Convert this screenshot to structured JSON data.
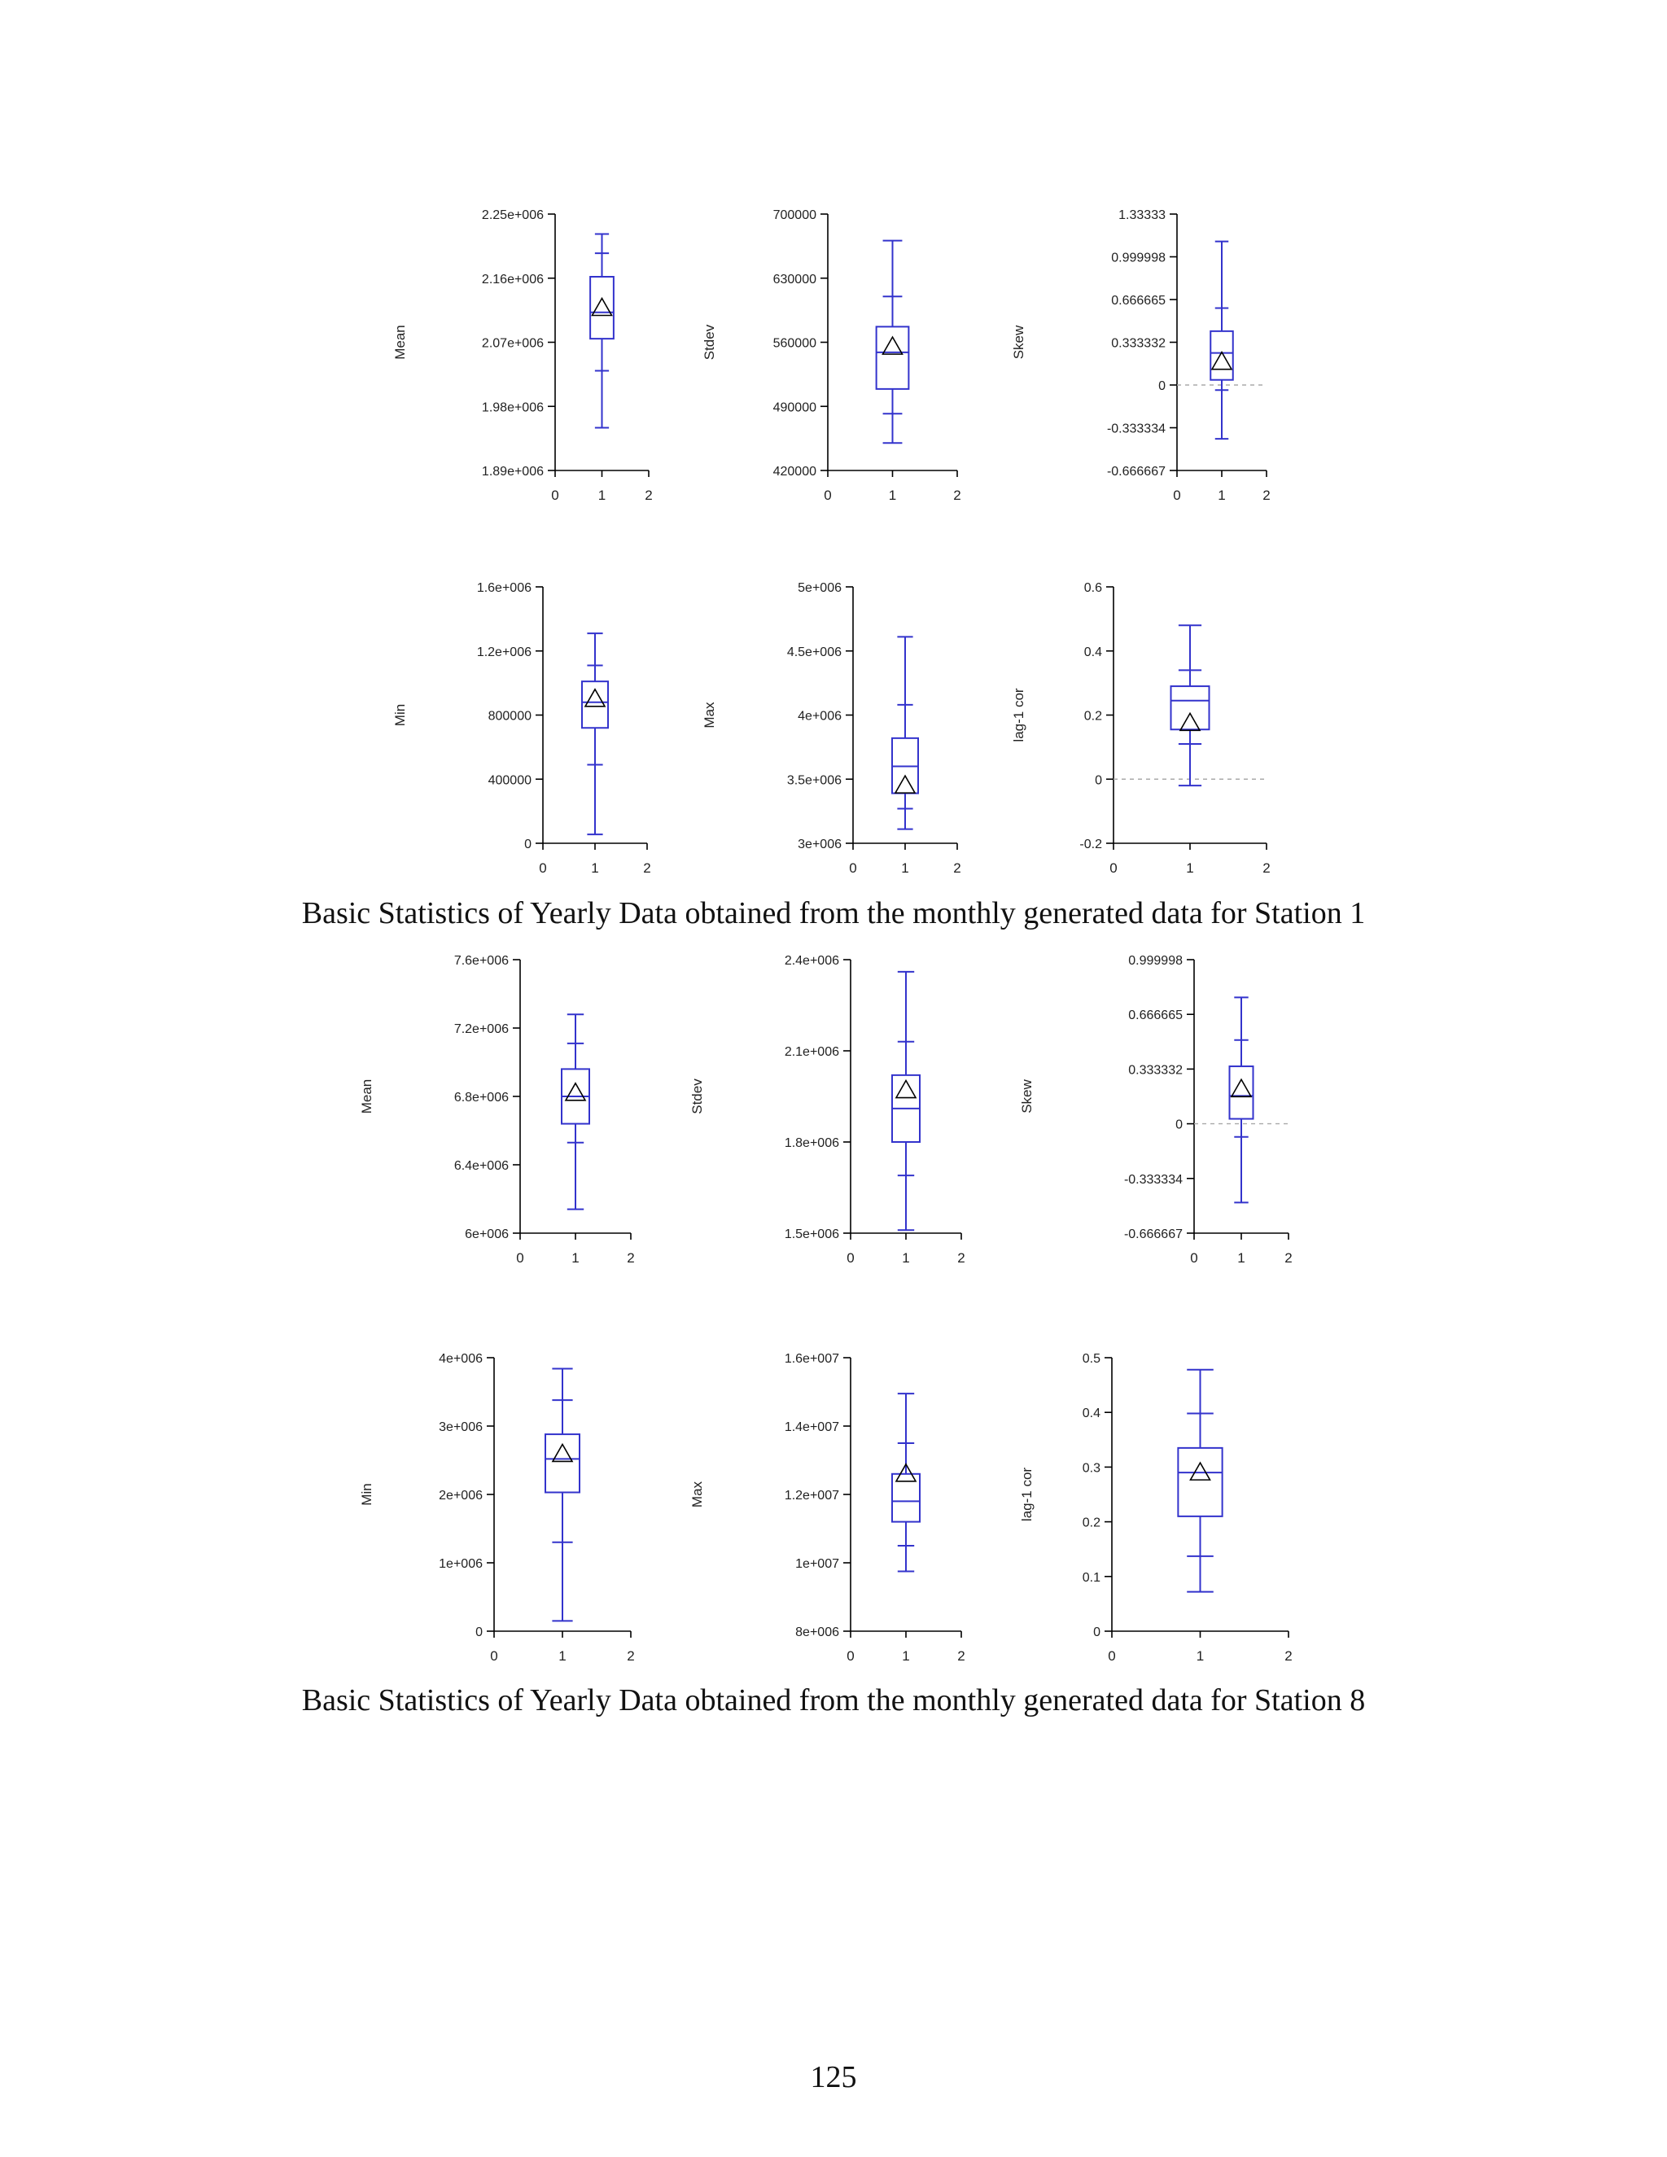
{
  "page": {
    "caption1": "Basic Statistics of Yearly Data obtained from the monthly generated data for Station 1",
    "caption2": "Basic Statistics of Yearly Data obtained from the monthly generated data for Station 8",
    "page_number": "125"
  },
  "colors": {
    "box": "#3333cc",
    "mean_marker": "#000000",
    "axis": "#000000",
    "zero_line": "#aaaaaa"
  },
  "chart_data": [
    {
      "type": "box",
      "station": 1,
      "ylabel": "Mean",
      "xticks": [
        "0",
        "1",
        "2"
      ],
      "ylim": [
        1890000,
        2250000
      ],
      "yticks": [
        {
          "v": 1890000,
          "l": "1.89e+006"
        },
        {
          "v": 1980000,
          "l": "1.98e+006"
        },
        {
          "v": 2070000,
          "l": "2.07e+006"
        },
        {
          "v": 2160000,
          "l": "2.16e+006"
        },
        {
          "v": 2250000,
          "l": "2.25e+006"
        }
      ],
      "stats": {
        "whisker_low": 1950000,
        "p5": 2030000,
        "q1": 2075000,
        "median": 2112000,
        "q3": 2162000,
        "p95": 2195000,
        "whisker_high": 2222000,
        "mean": 2118000
      },
      "zero_line": false
    },
    {
      "type": "box",
      "station": 1,
      "ylabel": "Stdev",
      "xticks": [
        "0",
        "1",
        "2"
      ],
      "ylim": [
        420000,
        700000
      ],
      "yticks": [
        {
          "v": 420000,
          "l": "420000"
        },
        {
          "v": 490000,
          "l": "490000"
        },
        {
          "v": 560000,
          "l": "560000"
        },
        {
          "v": 630000,
          "l": "630000"
        },
        {
          "v": 700000,
          "l": "700000"
        }
      ],
      "stats": {
        "whisker_low": 450000,
        "p5": 482000,
        "q1": 509000,
        "median": 549000,
        "q3": 577000,
        "p95": 610000,
        "whisker_high": 671000,
        "mean": 555000
      },
      "zero_line": false
    },
    {
      "type": "box",
      "station": 1,
      "ylabel": "Skew",
      "xticks": [
        "0",
        "1",
        "2"
      ],
      "ylim": [
        -0.666667,
        1.33333
      ],
      "yticks": [
        {
          "v": -0.666667,
          "l": "-0.666667"
        },
        {
          "v": -0.333334,
          "l": "-0.333334"
        },
        {
          "v": 0,
          "l": "0"
        },
        {
          "v": 0.333332,
          "l": "0.333332"
        },
        {
          "v": 0.666665,
          "l": "0.666665"
        },
        {
          "v": 0.999998,
          "l": "0.999998"
        },
        {
          "v": 1.33333,
          "l": "1.33333"
        }
      ],
      "stats": {
        "whisker_low": -0.42,
        "p5": -0.04,
        "q1": 0.04,
        "median": 0.25,
        "q3": 0.42,
        "p95": 0.6,
        "whisker_high": 1.12,
        "mean": 0.18
      },
      "zero_line": true
    },
    {
      "type": "box",
      "station": 1,
      "ylabel": "Min",
      "xticks": [
        "0",
        "1",
        "2"
      ],
      "ylim": [
        0,
        1600000
      ],
      "yticks": [
        {
          "v": 0,
          "l": "0"
        },
        {
          "v": 400000,
          "l": "400000"
        },
        {
          "v": 800000,
          "l": "800000"
        },
        {
          "v": 1200000,
          "l": "1.2e+006"
        },
        {
          "v": 1600000,
          "l": "1.6e+006"
        }
      ],
      "stats": {
        "whisker_low": 55000,
        "p5": 490000,
        "q1": 720000,
        "median": 880000,
        "q3": 1010000,
        "p95": 1110000,
        "whisker_high": 1310000,
        "mean": 900000
      },
      "zero_line": false
    },
    {
      "type": "box",
      "station": 1,
      "ylabel": "Max",
      "xticks": [
        "0",
        "1",
        "2"
      ],
      "ylim": [
        3000000,
        5000000
      ],
      "yticks": [
        {
          "v": 3000000,
          "l": "3e+006"
        },
        {
          "v": 3500000,
          "l": "3.5e+006"
        },
        {
          "v": 4000000,
          "l": "4e+006"
        },
        {
          "v": 4500000,
          "l": "4.5e+006"
        },
        {
          "v": 5000000,
          "l": "5e+006"
        }
      ],
      "stats": {
        "whisker_low": 3110000,
        "p5": 3270000,
        "q1": 3390000,
        "median": 3600000,
        "q3": 3820000,
        "p95": 4080000,
        "whisker_high": 4610000,
        "mean": 3450000
      },
      "zero_line": false
    },
    {
      "type": "box",
      "station": 1,
      "ylabel": "lag-1 cor",
      "xticks": [
        "0",
        "1",
        "2"
      ],
      "ylim": [
        -0.2,
        0.6
      ],
      "yticks": [
        {
          "v": -0.2,
          "l": "-0.2"
        },
        {
          "v": 0,
          "l": "0"
        },
        {
          "v": 0.2,
          "l": "0.2"
        },
        {
          "v": 0.4,
          "l": "0.4"
        },
        {
          "v": 0.6,
          "l": "0.6"
        }
      ],
      "stats": {
        "whisker_low": -0.02,
        "p5": 0.11,
        "q1": 0.155,
        "median": 0.245,
        "q3": 0.29,
        "p95": 0.34,
        "whisker_high": 0.48,
        "mean": 0.175
      },
      "zero_line": true
    },
    {
      "type": "box",
      "station": 8,
      "ylabel": "Mean",
      "xticks": [
        "0",
        "1",
        "2"
      ],
      "ylim": [
        6000000,
        7600000
      ],
      "yticks": [
        {
          "v": 6000000,
          "l": "6e+006"
        },
        {
          "v": 6400000,
          "l": "6.4e+006"
        },
        {
          "v": 6800000,
          "l": "6.8e+006"
        },
        {
          "v": 7200000,
          "l": "7.2e+006"
        },
        {
          "v": 7600000,
          "l": "7.6e+006"
        }
      ],
      "stats": {
        "whisker_low": 6140000,
        "p5": 6530000,
        "q1": 6640000,
        "median": 6800000,
        "q3": 6960000,
        "p95": 7110000,
        "whisker_high": 7280000,
        "mean": 6820000
      },
      "zero_line": false
    },
    {
      "type": "box",
      "station": 8,
      "ylabel": "Stdev",
      "xticks": [
        "0",
        "1",
        "2"
      ],
      "ylim": [
        1500000,
        2400000
      ],
      "yticks": [
        {
          "v": 1500000,
          "l": "1.5e+006"
        },
        {
          "v": 1800000,
          "l": "1.8e+006"
        },
        {
          "v": 2100000,
          "l": "2.1e+006"
        },
        {
          "v": 2400000,
          "l": "2.4e+006"
        }
      ],
      "stats": {
        "whisker_low": 1510000,
        "p5": 1690000,
        "q1": 1800000,
        "median": 1910000,
        "q3": 2020000,
        "p95": 2130000,
        "whisker_high": 2360000,
        "mean": 1970000
      },
      "zero_line": false
    },
    {
      "type": "box",
      "station": 8,
      "ylabel": "Skew",
      "xticks": [
        "0",
        "1",
        "2"
      ],
      "ylim": [
        -0.666667,
        0.999998
      ],
      "yticks": [
        {
          "v": -0.666667,
          "l": "-0.666667"
        },
        {
          "v": -0.333334,
          "l": "-0.333334"
        },
        {
          "v": 0,
          "l": "0"
        },
        {
          "v": 0.333332,
          "l": "0.333332"
        },
        {
          "v": 0.666665,
          "l": "0.666665"
        },
        {
          "v": 0.999998,
          "l": "0.999998"
        }
      ],
      "stats": {
        "whisker_low": -0.48,
        "p5": -0.08,
        "q1": 0.03,
        "median": 0.17,
        "q3": 0.35,
        "p95": 0.51,
        "whisker_high": 0.77,
        "mean": 0.21
      },
      "zero_line": true
    },
    {
      "type": "box",
      "station": 8,
      "ylabel": "Min",
      "xticks": [
        "0",
        "1",
        "2"
      ],
      "ylim": [
        0,
        4000000
      ],
      "yticks": [
        {
          "v": 0,
          "l": "0"
        },
        {
          "v": 1000000,
          "l": "1e+006"
        },
        {
          "v": 2000000,
          "l": "2e+006"
        },
        {
          "v": 3000000,
          "l": "3e+006"
        },
        {
          "v": 4000000,
          "l": "4e+006"
        }
      ],
      "stats": {
        "whisker_low": 150000,
        "p5": 1300000,
        "q1": 2030000,
        "median": 2520000,
        "q3": 2880000,
        "p95": 3380000,
        "whisker_high": 3840000,
        "mean": 2590000
      },
      "zero_line": false
    },
    {
      "type": "box",
      "station": 8,
      "ylabel": "Max",
      "xticks": [
        "0",
        "1",
        "2"
      ],
      "ylim": [
        8000000,
        16000000
      ],
      "yticks": [
        {
          "v": 8000000,
          "l": "8e+006"
        },
        {
          "v": 10000000,
          "l": "1e+007"
        },
        {
          "v": 12000000,
          "l": "1.2e+007"
        },
        {
          "v": 14000000,
          "l": "1.4e+007"
        },
        {
          "v": 16000000,
          "l": "1.6e+007"
        }
      ],
      "stats": {
        "whisker_low": 9750000,
        "p5": 10500000,
        "q1": 11200000,
        "median": 11800000,
        "q3": 12600000,
        "p95": 13500000,
        "whisker_high": 14950000,
        "mean": 12600000
      },
      "zero_line": false
    },
    {
      "type": "box",
      "station": 8,
      "ylabel": "lag-1 cor",
      "xticks": [
        "0",
        "1",
        "2"
      ],
      "ylim": [
        0,
        0.5
      ],
      "yticks": [
        {
          "v": 0,
          "l": "0"
        },
        {
          "v": 0.1,
          "l": "0.1"
        },
        {
          "v": 0.2,
          "l": "0.2"
        },
        {
          "v": 0.3,
          "l": "0.3"
        },
        {
          "v": 0.4,
          "l": "0.4"
        },
        {
          "v": 0.5,
          "l": "0.5"
        }
      ],
      "stats": {
        "whisker_low": 0.072,
        "p5": 0.137,
        "q1": 0.21,
        "median": 0.29,
        "q3": 0.335,
        "p95": 0.398,
        "whisker_high": 0.478,
        "mean": 0.29
      },
      "zero_line": false
    }
  ]
}
